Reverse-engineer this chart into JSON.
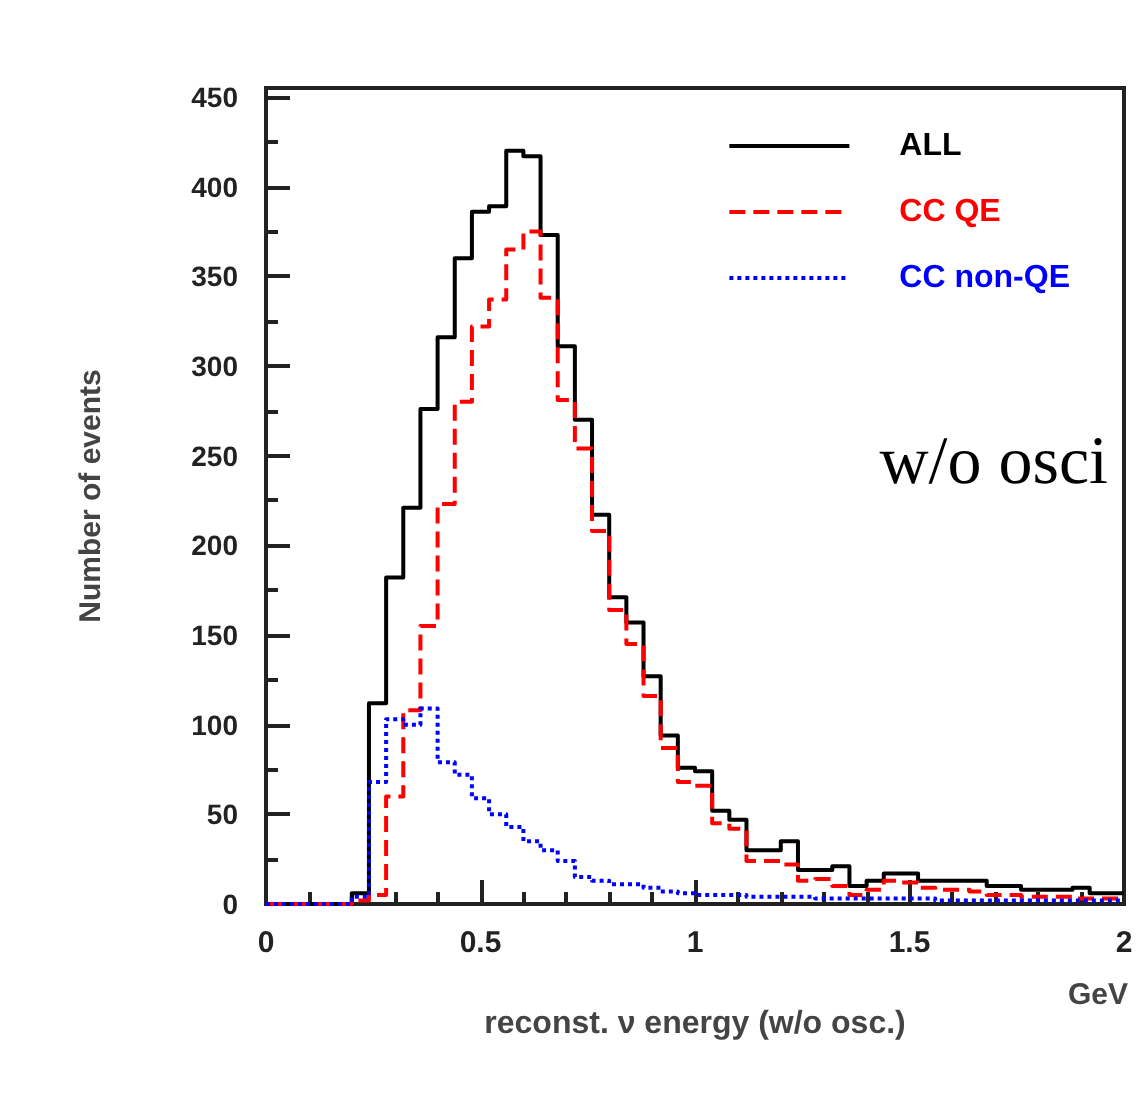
{
  "chart_data": {
    "type": "histogram",
    "xlabel": "reconst. ν energy (w/o osc.)",
    "ylabel": "Number of events",
    "annotations": [
      "GeV",
      "w/o osci"
    ],
    "bins": [
      0,
      0.04,
      0.08,
      0.12,
      0.16,
      0.2,
      0.24,
      0.28,
      0.32,
      0.36,
      0.4,
      0.44,
      0.48,
      0.52,
      0.56,
      0.6,
      0.64,
      0.68,
      0.72,
      0.76,
      0.8,
      0.84,
      0.88,
      0.92,
      0.96,
      1,
      1.04,
      1.08,
      1.12,
      1.16,
      1.2,
      1.24,
      1.28,
      1.32,
      1.36,
      1.4,
      1.44,
      1.48,
      1.52,
      1.56,
      1.6,
      1.64,
      1.68,
      1.72,
      1.76,
      1.8,
      1.84,
      1.88,
      1.92,
      1.96,
      2
    ],
    "series": [
      {
        "name": "ALL",
        "color": "#000000",
        "line_style": "solid",
        "values": [
          0,
          0,
          0,
          0,
          0,
          6,
          112,
          182,
          221,
          276,
          316,
          360,
          386,
          389,
          420,
          417,
          373,
          311,
          270,
          217,
          171,
          157,
          127,
          94,
          76,
          74,
          52,
          47,
          30,
          30,
          35,
          19,
          19,
          21,
          10,
          13,
          17,
          17,
          13,
          13,
          13,
          13,
          10,
          10,
          8,
          8,
          8,
          9,
          6,
          6
        ]
      },
      {
        "name": "CC QE",
        "color": "#ff0000",
        "line_style": "dashed",
        "values": [
          0,
          0,
          0,
          0,
          0,
          2,
          5,
          60,
          108,
          155,
          223,
          280,
          322,
          337,
          365,
          375,
          338,
          281,
          254,
          208,
          164,
          145,
          116,
          87,
          68,
          66,
          45,
          42,
          24,
          24,
          22,
          13,
          14,
          10,
          5,
          8,
          13,
          12,
          9,
          8,
          8,
          7,
          5,
          5,
          4,
          4,
          4,
          3,
          3,
          3
        ]
      },
      {
        "name": "CC non-QE",
        "color": "#0000ff",
        "line_style": "dotted",
        "values": [
          0,
          0,
          0,
          0,
          0,
          4,
          68,
          103,
          100,
          109,
          79,
          72,
          59,
          50,
          43,
          35,
          30,
          24,
          15,
          13,
          11,
          11,
          9,
          7,
          6,
          5,
          5,
          5,
          4,
          4,
          4,
          4,
          3,
          3,
          3,
          3,
          3,
          3,
          3,
          2,
          2,
          2,
          2,
          2,
          2,
          2,
          2,
          2,
          2,
          2
        ]
      }
    ],
    "xlim": [
      0,
      2
    ],
    "xticks": [
      0,
      0.5,
      1,
      1.5,
      2
    ],
    "ylim": [
      0,
      455
    ],
    "yticks": [
      0,
      50,
      100,
      150,
      200,
      250,
      300,
      350,
      400,
      450
    ],
    "grid": false,
    "legend": "top right"
  }
}
